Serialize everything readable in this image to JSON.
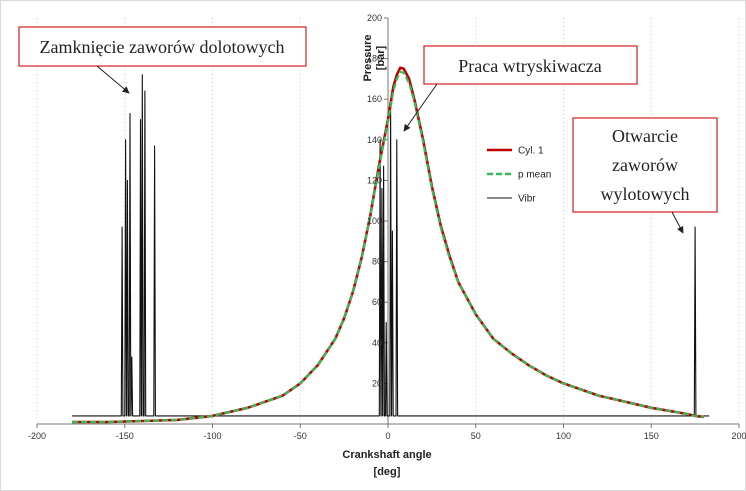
{
  "chart_data": {
    "type": "line",
    "xlabel": "Crankshaft angle",
    "xunit": "[deg]",
    "ylabel": "Pressure",
    "yunit": "[bar]",
    "xlim": [
      -200,
      200
    ],
    "ylim": [
      0,
      200
    ],
    "x_ticks": [
      -200,
      -150,
      -100,
      -50,
      0,
      50,
      100,
      150,
      200
    ],
    "y_ticks": [
      20,
      40,
      60,
      80,
      100,
      120,
      140,
      160,
      180,
      200
    ],
    "grid": "vertical dotted",
    "legend_position": "right of center",
    "series": [
      {
        "name": "Cyl. 1",
        "color": "#c00000",
        "style": "solid",
        "points": [
          [
            -180,
            1
          ],
          [
            -160,
            1
          ],
          [
            -140,
            1.5
          ],
          [
            -120,
            2
          ],
          [
            -100,
            4
          ],
          [
            -80,
            8
          ],
          [
            -60,
            14
          ],
          [
            -50,
            20
          ],
          [
            -40,
            29
          ],
          [
            -30,
            42
          ],
          [
            -25,
            52
          ],
          [
            -20,
            65
          ],
          [
            -15,
            82
          ],
          [
            -10,
            103
          ],
          [
            -5,
            128
          ],
          [
            0,
            150
          ],
          [
            3,
            166
          ],
          [
            5,
            172
          ],
          [
            7,
            175.5
          ],
          [
            9,
            175
          ],
          [
            12,
            170
          ],
          [
            15,
            160
          ],
          [
            20,
            140
          ],
          [
            25,
            117
          ],
          [
            30,
            98
          ],
          [
            35,
            83
          ],
          [
            40,
            70
          ],
          [
            50,
            54
          ],
          [
            60,
            42
          ],
          [
            70,
            35
          ],
          [
            80,
            29
          ],
          [
            90,
            24
          ],
          [
            100,
            20
          ],
          [
            110,
            17
          ],
          [
            120,
            14
          ],
          [
            130,
            12
          ],
          [
            140,
            10
          ],
          [
            150,
            8
          ],
          [
            160,
            6.5
          ],
          [
            170,
            5
          ],
          [
            175,
            4
          ],
          [
            180,
            3.5
          ]
        ]
      },
      {
        "name": "p mean",
        "color": "#33bb55",
        "style": "dashed",
        "points": [
          [
            -180,
            1
          ],
          [
            -160,
            1
          ],
          [
            -140,
            1.5
          ],
          [
            -120,
            2
          ],
          [
            -100,
            4
          ],
          [
            -80,
            8
          ],
          [
            -60,
            14
          ],
          [
            -50,
            20
          ],
          [
            -40,
            29
          ],
          [
            -30,
            42
          ],
          [
            -25,
            52
          ],
          [
            -20,
            65
          ],
          [
            -15,
            82
          ],
          [
            -10,
            103
          ],
          [
            -5,
            127
          ],
          [
            0,
            149
          ],
          [
            3,
            164
          ],
          [
            5,
            170
          ],
          [
            7,
            173.5
          ],
          [
            9,
            173
          ],
          [
            12,
            168
          ],
          [
            15,
            159
          ],
          [
            20,
            139
          ],
          [
            25,
            116
          ],
          [
            30,
            97
          ],
          [
            35,
            82
          ],
          [
            40,
            70
          ],
          [
            50,
            54
          ],
          [
            60,
            42
          ],
          [
            70,
            35
          ],
          [
            80,
            29
          ],
          [
            90,
            24
          ],
          [
            100,
            20
          ],
          [
            110,
            17
          ],
          [
            120,
            14
          ],
          [
            130,
            12
          ],
          [
            140,
            10
          ],
          [
            150,
            8
          ],
          [
            160,
            6.5
          ],
          [
            170,
            5
          ],
          [
            175,
            4
          ],
          [
            180,
            3.5
          ]
        ]
      },
      {
        "name": "Vibr",
        "color": "#111111",
        "style": "solid",
        "baseline": 4,
        "spikes": [
          {
            "x": -151.5,
            "y": 97
          },
          {
            "x": -149.5,
            "y": 140
          },
          {
            "x": -148.5,
            "y": 120
          },
          {
            "x": -147,
            "y": 153
          },
          {
            "x": -146,
            "y": 33
          },
          {
            "x": -141,
            "y": 150
          },
          {
            "x": -140,
            "y": 172
          },
          {
            "x": -138.5,
            "y": 164
          },
          {
            "x": -133,
            "y": 137
          },
          {
            "x": -4.5,
            "y": 140
          },
          {
            "x": -3.5,
            "y": 116
          },
          {
            "x": -2.5,
            "y": 127
          },
          {
            "x": -1,
            "y": 50
          },
          {
            "x": 1.5,
            "y": 157
          },
          {
            "x": 2.5,
            "y": 95
          },
          {
            "x": 5,
            "y": 140
          },
          {
            "x": 175,
            "y": 97
          }
        ]
      }
    ],
    "annotations": [
      {
        "text": "Zamknięcie zaworów dolotowych",
        "lines": [
          "Zamknięcie zaworów dolotowych"
        ],
        "border": "#d22020"
      },
      {
        "text": "Praca wtryskiwacza",
        "lines": [
          "Praca wtryskiwacza"
        ],
        "border": "#d22020"
      },
      {
        "text": "Otwarcie zaworów wylotowych",
        "lines": [
          "Otwarcie",
          "zaworów",
          "wylotowych"
        ],
        "border": "#d22020"
      }
    ]
  }
}
